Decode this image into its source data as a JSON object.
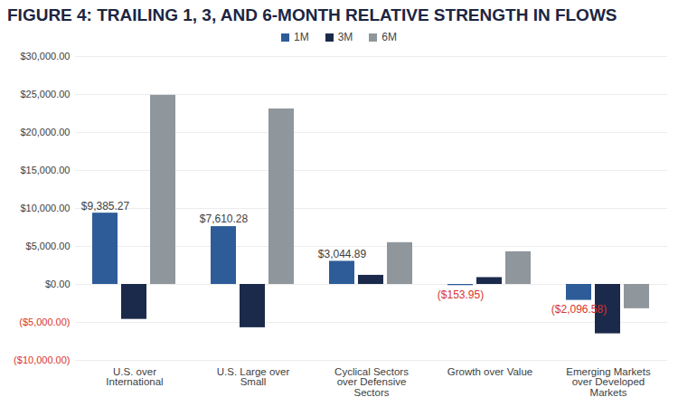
{
  "chart_data": {
    "type": "bar",
    "title": "FIGURE 4: TRAILING 1, 3, AND 6-MONTH RELATIVE STRENGTH IN FLOWS",
    "categories": [
      "U.S. over International",
      "U.S. Large over Small",
      "Cyclical Sectors over Defensive Sectors",
      "Growth over Value",
      "Emerging Markets over Developed Markets"
    ],
    "series": [
      {
        "name": "1M",
        "color": "#2e5c99",
        "values": [
          9385.27,
          7610.28,
          3044.89,
          -153.95,
          -2096.58
        ],
        "data_labels": true,
        "value_labels": [
          "$9,385.27",
          "$7,610.28",
          "$3,044.89",
          "($153.95)",
          "($2,096.58)"
        ]
      },
      {
        "name": "3M",
        "color": "#1b2a4a",
        "values": [
          -4600,
          -5700,
          1200,
          900,
          -6500
        ]
      },
      {
        "name": "6M",
        "color": "#8f969c",
        "values": [
          24900,
          23100,
          5500,
          4300,
          -3200
        ]
      }
    ],
    "ylim": [
      -10000,
      30000
    ],
    "yticks": [
      {
        "value": -10000,
        "label": "($10,000.00)"
      },
      {
        "value": -5000,
        "label": "($5,000.00)"
      },
      {
        "value": 0,
        "label": "$0.00"
      },
      {
        "value": 5000,
        "label": "$5,000.00"
      },
      {
        "value": 10000,
        "label": "$10,000.00"
      },
      {
        "value": 15000,
        "label": "$15,000.00"
      },
      {
        "value": 20000,
        "label": "$20,000.00"
      },
      {
        "value": 25000,
        "label": "$25,000.00"
      },
      {
        "value": 30000,
        "label": "$30,000.00"
      }
    ],
    "grid": true,
    "legend": "top"
  }
}
